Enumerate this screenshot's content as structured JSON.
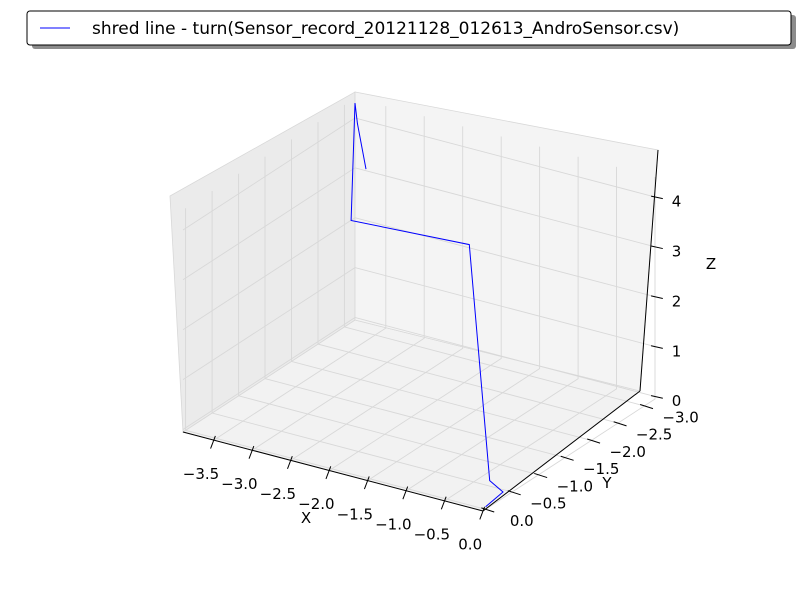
{
  "chart_data": {
    "type": "line",
    "projection": "3d",
    "title": "",
    "xlabel": "X",
    "ylabel": "Y",
    "zlabel": "Z",
    "xlim": [
      -3.9,
      0.0
    ],
    "ylim": [
      -3.2,
      0.05
    ],
    "zlim": [
      -0.05,
      4.4
    ],
    "x_ticks": [
      {
        "value": -3.5,
        "label": "−3.5"
      },
      {
        "value": -3.0,
        "label": "−3.0"
      },
      {
        "value": -2.5,
        "label": "−2.5"
      },
      {
        "value": -2.0,
        "label": "−2.0"
      },
      {
        "value": -1.5,
        "label": "−1.5"
      },
      {
        "value": -1.0,
        "label": "−1.0"
      },
      {
        "value": -0.5,
        "label": "−0.5"
      },
      {
        "value": 0.0,
        "label": "0.0"
      }
    ],
    "y_ticks": [
      {
        "value": -3.0,
        "label": "−3.0"
      },
      {
        "value": -2.5,
        "label": "−2.5"
      },
      {
        "value": -2.0,
        "label": "−2.0"
      },
      {
        "value": -1.5,
        "label": "−1.5"
      },
      {
        "value": -1.0,
        "label": "−1.0"
      },
      {
        "value": -0.5,
        "label": "−0.5"
      },
      {
        "value": 0.0,
        "label": "0.0"
      }
    ],
    "z_ticks": [
      {
        "value": 0,
        "label": "0"
      },
      {
        "value": 1,
        "label": "1"
      },
      {
        "value": 2,
        "label": "2"
      },
      {
        "value": 3,
        "label": "3"
      },
      {
        "value": 4,
        "label": "4"
      }
    ],
    "grid": true,
    "legend_position": "top",
    "series": [
      {
        "name": "shred line - turn(Sensor_record_20121128_012613_AndroSensor.csv)",
        "color": "#0000ff",
        "points": [
          {
            "x": 0.0,
            "y": 0.0,
            "z": 0.0
          },
          {
            "x": -0.05,
            "y": -0.4,
            "z": 0.0
          },
          {
            "x": -0.05,
            "y": -0.15,
            "z": 0.4
          },
          {
            "x": -0.9,
            "y": -1.0,
            "z": 4.2
          },
          {
            "x": -3.4,
            "y": -2.4,
            "z": 2.7
          },
          {
            "x": -3.9,
            "y": -3.2,
            "z": 4.3
          },
          {
            "x": -3.8,
            "y": -3.1,
            "z": 4.0
          },
          {
            "x": -3.0,
            "y": -2.1,
            "z": 4.1
          }
        ]
      }
    ]
  }
}
